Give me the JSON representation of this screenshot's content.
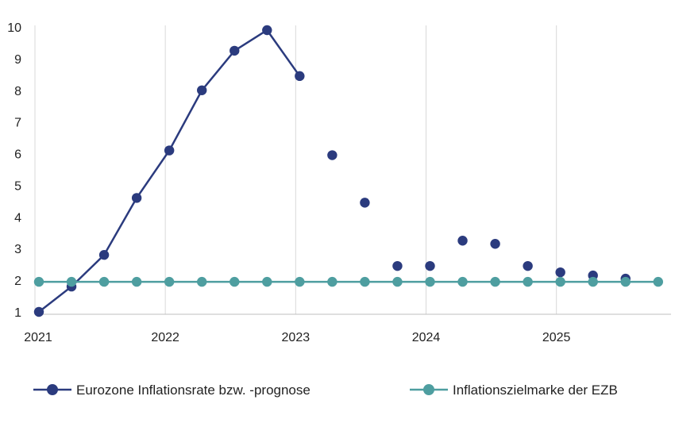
{
  "chart_data": {
    "type": "line",
    "x": [
      2021.0,
      2021.25,
      2021.5,
      2021.75,
      2022.0,
      2022.25,
      2022.5,
      2022.75,
      2023.0,
      2023.25,
      2023.5,
      2023.75,
      2024.0,
      2024.25,
      2024.5,
      2024.75,
      2025.0,
      2025.25,
      2025.5,
      2025.75
    ],
    "series": [
      {
        "name": "Eurozone Inflationsrate bzw. -prognose",
        "color": "#2b3b7e",
        "values": [
          1.0,
          1.8,
          2.8,
          4.6,
          6.1,
          8.0,
          9.25,
          9.9,
          8.45,
          5.95,
          4.45,
          2.45,
          2.45,
          3.25,
          3.15,
          2.45,
          2.25,
          2.15,
          2.05,
          null
        ],
        "line_until_index": 8
      },
      {
        "name": "Inflationszielmarke der EZB",
        "color": "#4e9ea0",
        "values": [
          1.95,
          1.95,
          1.95,
          1.95,
          1.95,
          1.95,
          1.95,
          1.95,
          1.95,
          1.95,
          1.95,
          1.95,
          1.95,
          1.95,
          1.95,
          1.95,
          1.95,
          1.95,
          1.95,
          1.95
        ]
      }
    ],
    "x_ticks": [
      "2021",
      "2022",
      "2023",
      "2024",
      "2025"
    ],
    "x_tick_values": [
      2021,
      2022,
      2023,
      2024,
      2025
    ],
    "y_ticks": [
      "1",
      "2",
      "3",
      "4",
      "5",
      "6",
      "7",
      "8",
      "9",
      "10"
    ],
    "ylim": [
      1,
      10
    ],
    "xlim": [
      2021.0,
      2025.8
    ],
    "grid": "vertical",
    "legend": "bottom",
    "title": "",
    "xlabel": "",
    "ylabel": ""
  }
}
